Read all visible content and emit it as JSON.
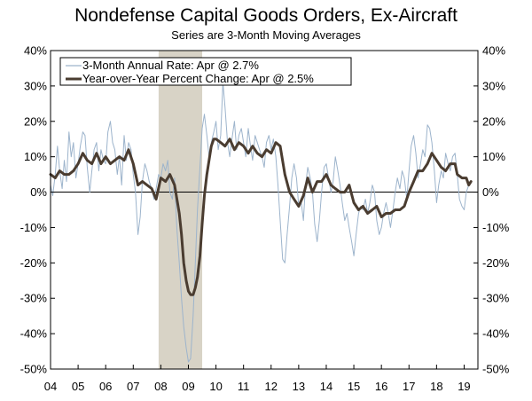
{
  "chart_data": {
    "type": "line",
    "title": "Nondefense Capital Goods Orders, Ex-Aircraft",
    "subtitle": "Series are 3-Month Moving Averages",
    "xlim": [
      2004.0,
      2019.5
    ],
    "ylim": [
      -50,
      40
    ],
    "y_ticks": [
      "40%",
      "30%",
      "20%",
      "10%",
      "0%",
      "-10%",
      "-20%",
      "-30%",
      "-40%",
      "-50%"
    ],
    "y_tick_values": [
      40,
      30,
      20,
      10,
      0,
      -10,
      -20,
      -30,
      -40,
      -50
    ],
    "x_ticks": [
      "04",
      "05",
      "06",
      "07",
      "08",
      "09",
      "10",
      "11",
      "12",
      "13",
      "14",
      "15",
      "16",
      "17",
      "18",
      "19"
    ],
    "x_tick_values": [
      2004,
      2005,
      2006,
      2007,
      2008,
      2009,
      2010,
      2011,
      2012,
      2013,
      2014,
      2015,
      2016,
      2017,
      2018,
      2019
    ],
    "recession": [
      2007.92,
      2009.5
    ],
    "grid": false,
    "legend": "top-left",
    "colors": {
      "annual_rate": "#9db4cc",
      "yoy": "#4a3c30",
      "recession": "#d8d3c6"
    },
    "series": [
      {
        "name": "3-Month Annual Rate: Apr @ 2.7%",
        "points": [
          [
            2004.0,
            2
          ],
          [
            2004.08,
            -1
          ],
          [
            2004.17,
            5
          ],
          [
            2004.25,
            13
          ],
          [
            2004.33,
            6
          ],
          [
            2004.42,
            1
          ],
          [
            2004.5,
            9
          ],
          [
            2004.58,
            3
          ],
          [
            2004.67,
            17
          ],
          [
            2004.75,
            10
          ],
          [
            2004.83,
            14
          ],
          [
            2004.92,
            4
          ],
          [
            2005.0,
            8
          ],
          [
            2005.08,
            13
          ],
          [
            2005.17,
            17
          ],
          [
            2005.25,
            16
          ],
          [
            2005.33,
            7
          ],
          [
            2005.42,
            0
          ],
          [
            2005.5,
            6
          ],
          [
            2005.58,
            12
          ],
          [
            2005.67,
            14
          ],
          [
            2005.75,
            6
          ],
          [
            2005.83,
            12
          ],
          [
            2005.92,
            9
          ],
          [
            2006.0,
            8
          ],
          [
            2006.08,
            17
          ],
          [
            2006.17,
            20
          ],
          [
            2006.25,
            14
          ],
          [
            2006.33,
            12
          ],
          [
            2006.42,
            5
          ],
          [
            2006.5,
            10
          ],
          [
            2006.58,
            2
          ],
          [
            2006.67,
            16
          ],
          [
            2006.75,
            9
          ],
          [
            2006.83,
            14
          ],
          [
            2006.92,
            12
          ],
          [
            2007.0,
            5
          ],
          [
            2007.08,
            0
          ],
          [
            2007.17,
            -12
          ],
          [
            2007.25,
            -7
          ],
          [
            2007.33,
            3
          ],
          [
            2007.42,
            8
          ],
          [
            2007.5,
            6
          ],
          [
            2007.58,
            3
          ],
          [
            2007.67,
            1
          ],
          [
            2007.75,
            -2
          ],
          [
            2007.83,
            1
          ],
          [
            2007.92,
            5
          ],
          [
            2008.0,
            4
          ],
          [
            2008.08,
            8
          ],
          [
            2008.17,
            6
          ],
          [
            2008.25,
            9
          ],
          [
            2008.33,
            0
          ],
          [
            2008.42,
            -2
          ],
          [
            2008.5,
            4
          ],
          [
            2008.58,
            -10
          ],
          [
            2008.67,
            -20
          ],
          [
            2008.75,
            -30
          ],
          [
            2008.83,
            -38
          ],
          [
            2008.92,
            -44
          ],
          [
            2009.0,
            -48
          ],
          [
            2009.08,
            -47
          ],
          [
            2009.17,
            -35
          ],
          [
            2009.25,
            -20
          ],
          [
            2009.33,
            -5
          ],
          [
            2009.42,
            7
          ],
          [
            2009.5,
            18
          ],
          [
            2009.58,
            22
          ],
          [
            2009.67,
            16
          ],
          [
            2009.75,
            10
          ],
          [
            2009.83,
            14
          ],
          [
            2009.92,
            17
          ],
          [
            2010.0,
            20
          ],
          [
            2010.08,
            12
          ],
          [
            2010.17,
            16
          ],
          [
            2010.25,
            31
          ],
          [
            2010.33,
            24
          ],
          [
            2010.42,
            14
          ],
          [
            2010.5,
            10
          ],
          [
            2010.58,
            15
          ],
          [
            2010.67,
            20
          ],
          [
            2010.75,
            12
          ],
          [
            2010.83,
            16
          ],
          [
            2010.92,
            18
          ],
          [
            2011.0,
            14
          ],
          [
            2011.08,
            10
          ],
          [
            2011.17,
            18
          ],
          [
            2011.25,
            13
          ],
          [
            2011.33,
            9
          ],
          [
            2011.42,
            16
          ],
          [
            2011.5,
            14
          ],
          [
            2011.58,
            12
          ],
          [
            2011.67,
            10
          ],
          [
            2011.75,
            7
          ],
          [
            2011.83,
            14
          ],
          [
            2011.92,
            16
          ],
          [
            2012.0,
            12
          ],
          [
            2012.08,
            15
          ],
          [
            2012.17,
            10
          ],
          [
            2012.25,
            2
          ],
          [
            2012.33,
            -8
          ],
          [
            2012.42,
            -19
          ],
          [
            2012.5,
            -20
          ],
          [
            2012.58,
            -12
          ],
          [
            2012.67,
            -4
          ],
          [
            2012.75,
            4
          ],
          [
            2012.83,
            8
          ],
          [
            2012.92,
            4
          ],
          [
            2013.0,
            -4
          ],
          [
            2013.08,
            -2
          ],
          [
            2013.17,
            -8
          ],
          [
            2013.25,
            2
          ],
          [
            2013.33,
            7
          ],
          [
            2013.42,
            4
          ],
          [
            2013.5,
            0
          ],
          [
            2013.58,
            -9
          ],
          [
            2013.67,
            -14
          ],
          [
            2013.75,
            -8
          ],
          [
            2013.83,
            0
          ],
          [
            2013.92,
            7
          ],
          [
            2014.0,
            8
          ],
          [
            2014.08,
            4
          ],
          [
            2014.17,
            0
          ],
          [
            2014.25,
            3
          ],
          [
            2014.33,
            10
          ],
          [
            2014.42,
            6
          ],
          [
            2014.5,
            2
          ],
          [
            2014.58,
            -3
          ],
          [
            2014.67,
            -8
          ],
          [
            2014.75,
            -6
          ],
          [
            2014.83,
            -10
          ],
          [
            2014.92,
            -14
          ],
          [
            2015.0,
            -18
          ],
          [
            2015.08,
            -12
          ],
          [
            2015.17,
            -6
          ],
          [
            2015.25,
            -4
          ],
          [
            2015.33,
            -5
          ],
          [
            2015.42,
            -2
          ],
          [
            2015.5,
            -6
          ],
          [
            2015.58,
            -3
          ],
          [
            2015.67,
            2
          ],
          [
            2015.75,
            0
          ],
          [
            2015.83,
            -8
          ],
          [
            2015.92,
            -12
          ],
          [
            2016.0,
            -10
          ],
          [
            2016.08,
            -6
          ],
          [
            2016.17,
            -3
          ],
          [
            2016.25,
            -6
          ],
          [
            2016.33,
            -10
          ],
          [
            2016.42,
            -5
          ],
          [
            2016.5,
            0
          ],
          [
            2016.58,
            4
          ],
          [
            2016.67,
            1
          ],
          [
            2016.75,
            6
          ],
          [
            2016.83,
            4
          ],
          [
            2016.92,
            -2
          ],
          [
            2017.0,
            6
          ],
          [
            2017.08,
            13
          ],
          [
            2017.17,
            16
          ],
          [
            2017.25,
            11
          ],
          [
            2017.33,
            4
          ],
          [
            2017.42,
            8
          ],
          [
            2017.5,
            12
          ],
          [
            2017.58,
            10
          ],
          [
            2017.67,
            19
          ],
          [
            2017.75,
            18
          ],
          [
            2017.83,
            14
          ],
          [
            2017.92,
            6
          ],
          [
            2018.0,
            -3
          ],
          [
            2018.08,
            2
          ],
          [
            2018.17,
            6
          ],
          [
            2018.25,
            4
          ],
          [
            2018.33,
            11
          ],
          [
            2018.42,
            8
          ],
          [
            2018.5,
            6
          ],
          [
            2018.58,
            10
          ],
          [
            2018.67,
            11
          ],
          [
            2018.75,
            5
          ],
          [
            2018.83,
            -2
          ],
          [
            2018.92,
            -4
          ],
          [
            2019.0,
            -5
          ],
          [
            2019.08,
            0
          ],
          [
            2019.17,
            2
          ],
          [
            2019.25,
            3
          ]
        ]
      },
      {
        "name": "Year-over-Year Percent Change: Apr @ 2.5%",
        "points": [
          [
            2004.0,
            5
          ],
          [
            2004.17,
            4
          ],
          [
            2004.33,
            6
          ],
          [
            2004.5,
            5
          ],
          [
            2004.67,
            5
          ],
          [
            2004.83,
            6
          ],
          [
            2005.0,
            8
          ],
          [
            2005.17,
            11
          ],
          [
            2005.33,
            9
          ],
          [
            2005.5,
            8
          ],
          [
            2005.67,
            11
          ],
          [
            2005.83,
            8
          ],
          [
            2006.0,
            10
          ],
          [
            2006.17,
            8
          ],
          [
            2006.33,
            9
          ],
          [
            2006.5,
            10
          ],
          [
            2006.67,
            9
          ],
          [
            2006.83,
            12
          ],
          [
            2007.0,
            8
          ],
          [
            2007.17,
            2
          ],
          [
            2007.33,
            3
          ],
          [
            2007.5,
            2
          ],
          [
            2007.67,
            1
          ],
          [
            2007.83,
            -2
          ],
          [
            2008.0,
            4
          ],
          [
            2008.17,
            3
          ],
          [
            2008.33,
            5
          ],
          [
            2008.5,
            2
          ],
          [
            2008.67,
            -6
          ],
          [
            2008.75,
            -12
          ],
          [
            2008.83,
            -20
          ],
          [
            2008.92,
            -25
          ],
          [
            2009.0,
            -28
          ],
          [
            2009.08,
            -29
          ],
          [
            2009.17,
            -29
          ],
          [
            2009.25,
            -27
          ],
          [
            2009.33,
            -24
          ],
          [
            2009.42,
            -18
          ],
          [
            2009.5,
            -9
          ],
          [
            2009.58,
            -1
          ],
          [
            2009.67,
            5
          ],
          [
            2009.75,
            9
          ],
          [
            2009.83,
            13
          ],
          [
            2009.92,
            15
          ],
          [
            2010.0,
            15
          ],
          [
            2010.17,
            14
          ],
          [
            2010.33,
            13
          ],
          [
            2010.5,
            15
          ],
          [
            2010.67,
            12
          ],
          [
            2010.83,
            14
          ],
          [
            2011.0,
            13
          ],
          [
            2011.17,
            11
          ],
          [
            2011.33,
            13
          ],
          [
            2011.5,
            11
          ],
          [
            2011.67,
            10
          ],
          [
            2011.83,
            12
          ],
          [
            2012.0,
            11
          ],
          [
            2012.17,
            14
          ],
          [
            2012.33,
            13
          ],
          [
            2012.5,
            5
          ],
          [
            2012.67,
            0
          ],
          [
            2012.83,
            -2
          ],
          [
            2013.0,
            -4
          ],
          [
            2013.17,
            -1
          ],
          [
            2013.33,
            4
          ],
          [
            2013.5,
            0
          ],
          [
            2013.67,
            3
          ],
          [
            2013.83,
            3
          ],
          [
            2014.0,
            5
          ],
          [
            2014.17,
            2
          ],
          [
            2014.33,
            1
          ],
          [
            2014.5,
            0
          ],
          [
            2014.67,
            0
          ],
          [
            2014.83,
            2
          ],
          [
            2015.0,
            -3
          ],
          [
            2015.17,
            -5
          ],
          [
            2015.33,
            -4
          ],
          [
            2015.5,
            -6
          ],
          [
            2015.67,
            -5
          ],
          [
            2015.83,
            -4
          ],
          [
            2016.0,
            -7
          ],
          [
            2016.17,
            -6
          ],
          [
            2016.33,
            -6
          ],
          [
            2016.5,
            -5
          ],
          [
            2016.67,
            -5
          ],
          [
            2016.83,
            -4
          ],
          [
            2017.0,
            0
          ],
          [
            2017.17,
            3
          ],
          [
            2017.33,
            6
          ],
          [
            2017.5,
            6
          ],
          [
            2017.67,
            8
          ],
          [
            2017.83,
            11
          ],
          [
            2018.0,
            9
          ],
          [
            2018.17,
            7
          ],
          [
            2018.33,
            6
          ],
          [
            2018.5,
            8
          ],
          [
            2018.67,
            8
          ],
          [
            2018.75,
            5
          ],
          [
            2018.92,
            4
          ],
          [
            2019.08,
            4
          ],
          [
            2019.17,
            2
          ],
          [
            2019.25,
            3
          ]
        ]
      }
    ]
  }
}
